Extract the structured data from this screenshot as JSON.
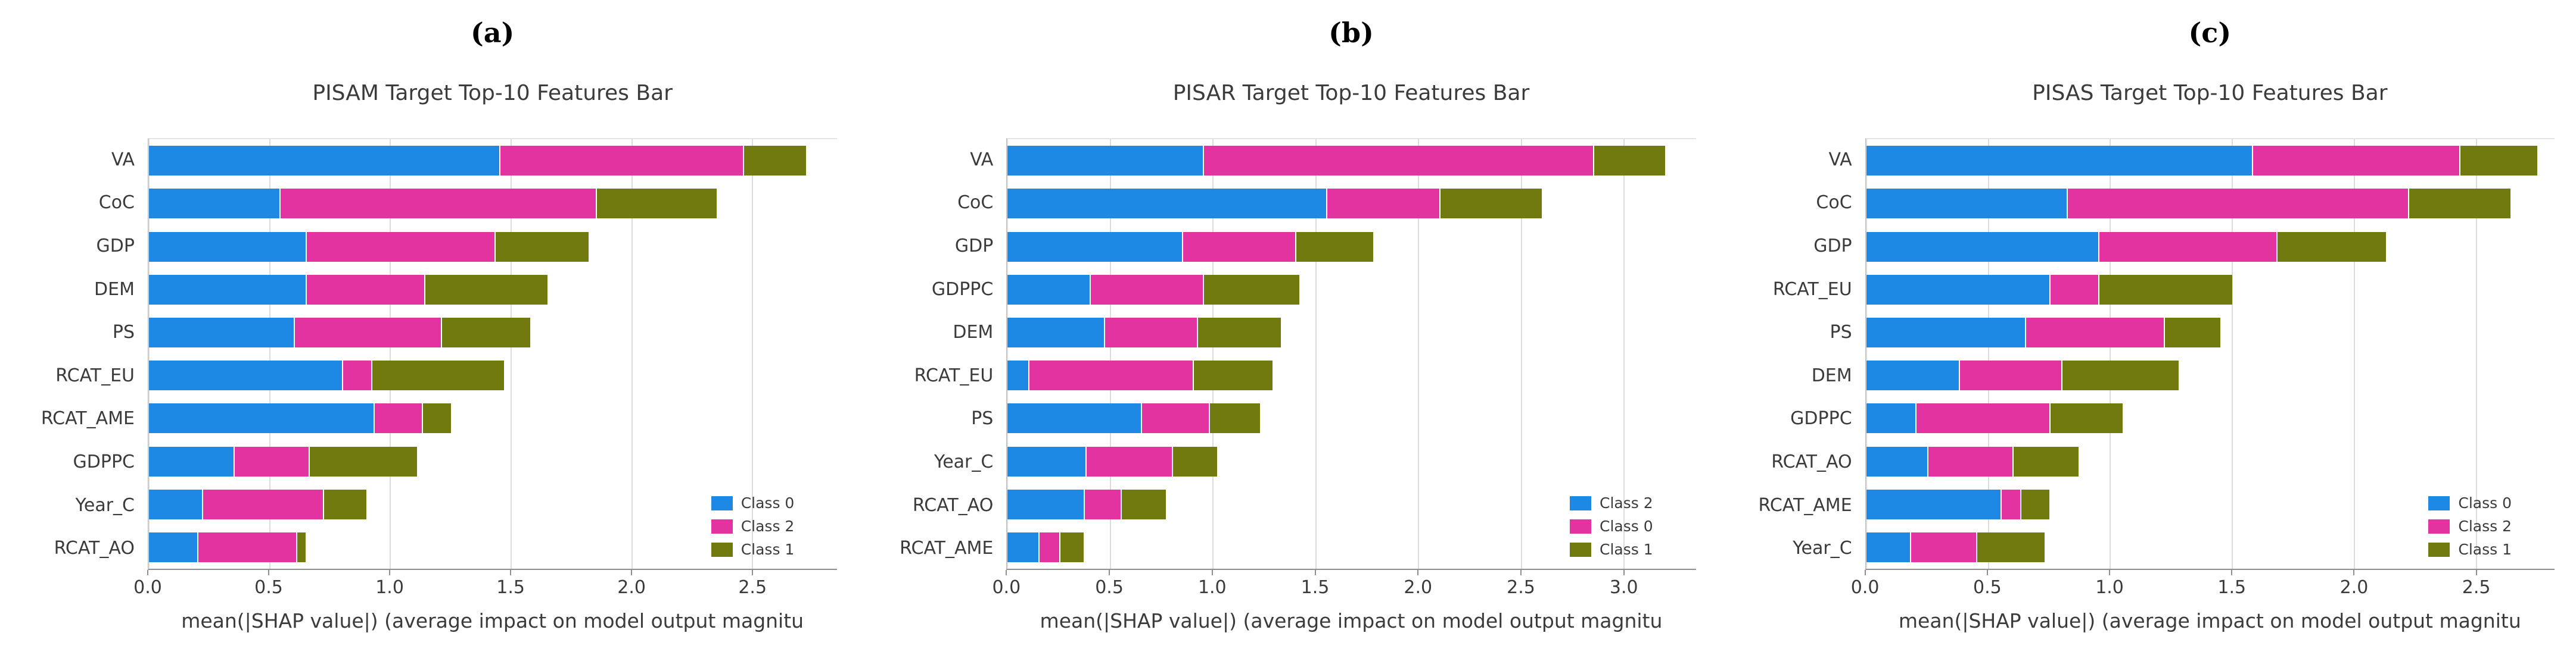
{
  "figure": {
    "background": "#ffffff",
    "palette": {
      "blue": "#1e88e5",
      "magenta": "#e233a0",
      "olive": "#717a0e"
    }
  },
  "chart_data": [
    {
      "type": "bar",
      "orientation": "horizontal-stacked",
      "panel_label": "(a)",
      "title": "PISAM Target Top-10 Features Bar",
      "xlabel": "mean(|SHAP value|) (average impact on model output magnitu",
      "xlim": [
        0,
        2.85
      ],
      "ticks": [
        0.0,
        0.5,
        1.0,
        1.5,
        2.0,
        2.5
      ],
      "grid": true,
      "legend_position": "lower-right",
      "categories": [
        "VA",
        "CoC",
        "GDP",
        "DEM",
        "PS",
        "RCAT_EU",
        "RCAT_AME",
        "GDPPC",
        "Year_C",
        "RCAT_AO"
      ],
      "series": [
        {
          "name": "Class 0",
          "color": "#1e88e5",
          "values": [
            1.45,
            0.54,
            0.65,
            0.65,
            0.6,
            0.8,
            0.93,
            0.35,
            0.22,
            0.2
          ]
        },
        {
          "name": "Class 2",
          "color": "#e233a0",
          "values": [
            1.01,
            1.31,
            0.78,
            0.49,
            0.61,
            0.12,
            0.2,
            0.31,
            0.5,
            0.41
          ]
        },
        {
          "name": "Class 1",
          "color": "#717a0e",
          "values": [
            0.26,
            0.5,
            0.39,
            0.51,
            0.37,
            0.55,
            0.12,
            0.45,
            0.18,
            0.04
          ]
        }
      ]
    },
    {
      "type": "bar",
      "orientation": "horizontal-stacked",
      "panel_label": "(b)",
      "title": "PISAR Target Top-10 Features Bar",
      "xlabel": "mean(|SHAP value|) (average impact on model output magnitu",
      "xlim": [
        0,
        3.35
      ],
      "ticks": [
        0.0,
        0.5,
        1.0,
        1.5,
        2.0,
        2.5,
        3.0
      ],
      "grid": true,
      "legend_position": "lower-right",
      "categories": [
        "VA",
        "CoC",
        "GDP",
        "GDPPC",
        "DEM",
        "RCAT_EU",
        "PS",
        "Year_C",
        "RCAT_AO",
        "RCAT_AME"
      ],
      "series": [
        {
          "name": "Class 2",
          "color": "#1e88e5",
          "values": [
            0.95,
            1.55,
            0.85,
            0.4,
            0.47,
            0.1,
            0.65,
            0.38,
            0.37,
            0.15
          ]
        },
        {
          "name": "Class 0",
          "color": "#e233a0",
          "values": [
            1.9,
            0.55,
            0.55,
            0.55,
            0.45,
            0.8,
            0.33,
            0.42,
            0.18,
            0.1
          ]
        },
        {
          "name": "Class 1",
          "color": "#717a0e",
          "values": [
            0.35,
            0.5,
            0.38,
            0.47,
            0.41,
            0.39,
            0.25,
            0.22,
            0.22,
            0.12
          ]
        }
      ]
    },
    {
      "type": "bar",
      "orientation": "horizontal-stacked",
      "panel_label": "(c)",
      "title": "PISAS Target Top-10 Features Bar",
      "xlabel": "mean(|SHAP value|) (average impact on model output magnitu",
      "xlim": [
        0,
        2.82
      ],
      "ticks": [
        0.0,
        0.5,
        1.0,
        1.5,
        2.0,
        2.5
      ],
      "grid": true,
      "legend_position": "lower-right",
      "categories": [
        "VA",
        "CoC",
        "GDP",
        "RCAT_EU",
        "PS",
        "DEM",
        "GDPPC",
        "RCAT_AO",
        "RCAT_AME",
        "Year_C"
      ],
      "series": [
        {
          "name": "Class 0",
          "color": "#1e88e5",
          "values": [
            1.58,
            0.82,
            0.95,
            0.75,
            0.65,
            0.38,
            0.2,
            0.25,
            0.55,
            0.18
          ]
        },
        {
          "name": "Class 2",
          "color": "#e233a0",
          "values": [
            0.85,
            1.4,
            0.73,
            0.2,
            0.57,
            0.42,
            0.55,
            0.35,
            0.08,
            0.27
          ]
        },
        {
          "name": "Class 1",
          "color": "#717a0e",
          "values": [
            0.32,
            0.42,
            0.45,
            0.55,
            0.23,
            0.48,
            0.3,
            0.27,
            0.12,
            0.28
          ]
        }
      ]
    }
  ]
}
